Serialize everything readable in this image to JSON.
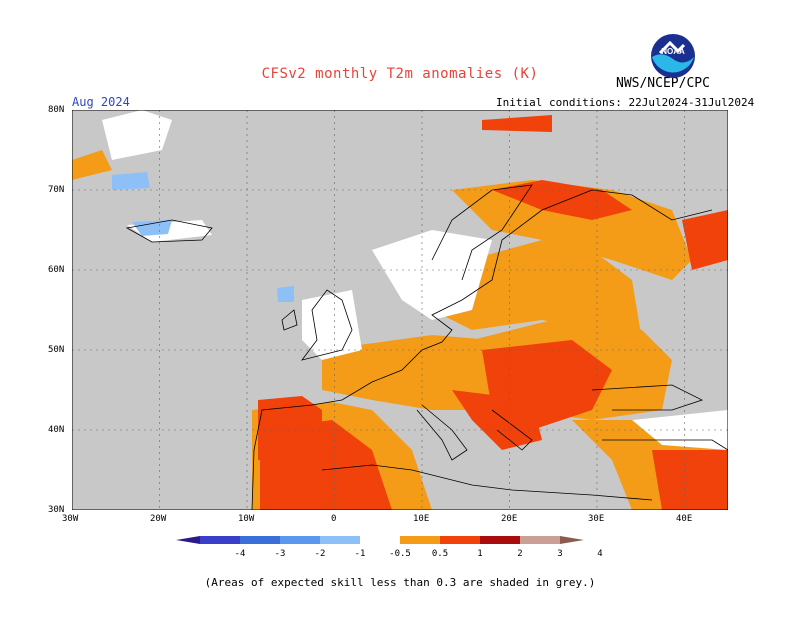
{
  "header": {
    "title": "CFSv2 monthly T2m anomalies (K)",
    "agency": "NWS/NCEP/CPC",
    "month": "Aug 2024",
    "initial_conditions": "Initial conditions: 22Jul2024-31Jul2024"
  },
  "logo": {
    "text": "NOAA",
    "icon": "noaa-logo-icon"
  },
  "map": {
    "lat_labels": [
      "80N",
      "70N",
      "60N",
      "50N",
      "40N",
      "30N"
    ],
    "lon_labels": [
      "30W",
      "20W",
      "10W",
      "0",
      "10E",
      "20E",
      "30E",
      "40E"
    ],
    "ocean_color": "#c8c8c8",
    "masked_color": "#c8c8c8"
  },
  "colorbar": {
    "tick_labels": [
      "-4",
      "-3",
      "-2",
      "-1",
      "-0.5",
      "0.5",
      "1",
      "2",
      "3",
      "4"
    ],
    "colors": [
      "#2a1a8c",
      "#3a3ec8",
      "#3a6ed8",
      "#5a98ee",
      "#8ec0f8",
      "#ffffff",
      "#f49c18",
      "#f0420a",
      "#a80c0c",
      "#c8a098",
      "#8c5a50"
    ]
  },
  "footnote": "(Areas of expected skill less than 0.3 are shaded in grey.)"
}
